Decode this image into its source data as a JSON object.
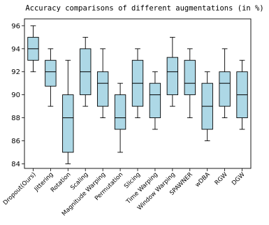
{
  "chart_data": {
    "type": "boxplot",
    "title": "Accuracy comparisons of different augmentations (in %)",
    "xlabel": "",
    "ylabel": "",
    "ylim": [
      83.6,
      96.6
    ],
    "yticks": [
      84,
      86,
      88,
      90,
      92,
      94,
      96
    ],
    "grid": false,
    "box_color": "#add8e6",
    "median_color": "#000000",
    "categories": [
      "Dropout(Ours)",
      "Jittering",
      "Rotation",
      "Scaling",
      "Magnitude Warping",
      "Permutation",
      "Slicing",
      "Time Warping",
      "Window Warping",
      "SPAWNER",
      "wDBA",
      "RGW",
      "DGW"
    ],
    "boxes": [
      {
        "label": "Dropout(Ours)",
        "min": 92,
        "q1": 93,
        "median": 94,
        "q3": 95,
        "max": 96
      },
      {
        "label": "Jittering",
        "min": 89,
        "q1": 90.75,
        "median": 92,
        "q3": 93,
        "max": 94
      },
      {
        "label": "Rotation",
        "min": 84,
        "q1": 85,
        "median": 88,
        "q3": 90,
        "max": 93
      },
      {
        "label": "Scaling",
        "min": 89,
        "q1": 90,
        "median": 92,
        "q3": 94,
        "max": 95
      },
      {
        "label": "Magnitude Warping",
        "min": 88,
        "q1": 89,
        "median": 91,
        "q3": 92,
        "max": 94
      },
      {
        "label": "Permutation",
        "min": 85,
        "q1": 87,
        "median": 88,
        "q3": 90,
        "max": 91
      },
      {
        "label": "Slicing",
        "min": 88,
        "q1": 89,
        "median": 91,
        "q3": 93,
        "max": 94
      },
      {
        "label": "Time Warping",
        "min": 87,
        "q1": 88,
        "median": 90,
        "q3": 91,
        "max": 92
      },
      {
        "label": "Window Warping",
        "min": 89,
        "q1": 90,
        "median": 92,
        "q3": 93.25,
        "max": 95
      },
      {
        "label": "SPAWNER",
        "min": 88,
        "q1": 90,
        "median": 91,
        "q3": 93,
        "max": 94
      },
      {
        "label": "wDBA",
        "min": 86,
        "q1": 87,
        "median": 89,
        "q3": 91,
        "max": 92
      },
      {
        "label": "RGW",
        "min": 88,
        "q1": 89,
        "median": 91,
        "q3": 92,
        "max": 94
      },
      {
        "label": "DGW",
        "min": 87,
        "q1": 88,
        "median": 90,
        "q3": 92,
        "max": 93
      }
    ]
  }
}
